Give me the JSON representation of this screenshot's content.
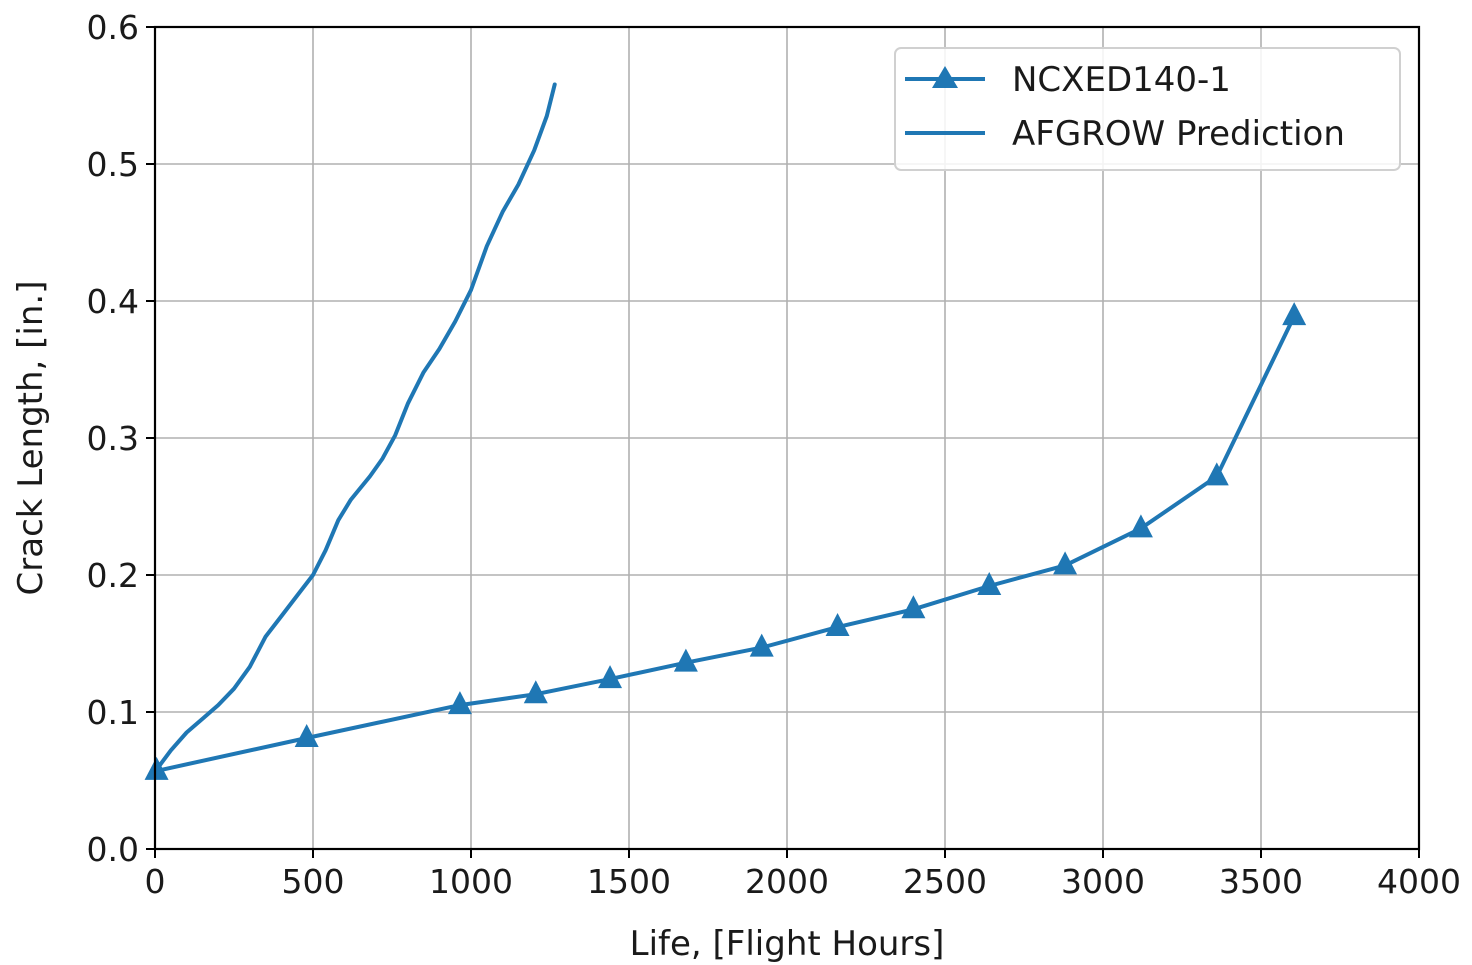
{
  "chart_data": {
    "type": "line",
    "xlabel": "Life, [Flight Hours]",
    "ylabel": "Crack Length, [in.]",
    "xlim": [
      0,
      4000
    ],
    "ylim": [
      0,
      0.6
    ],
    "x_ticks": [
      0,
      500,
      1000,
      1500,
      2000,
      2500,
      3000,
      3500,
      4000
    ],
    "y_ticks": [
      0.0,
      0.1,
      0.2,
      0.3,
      0.4,
      0.5,
      0.6
    ],
    "x_tick_labels": [
      "0",
      "500",
      "1000",
      "1500",
      "2000",
      "2500",
      "3000",
      "3500",
      "4000"
    ],
    "y_tick_labels": [
      "0.0",
      "0.1",
      "0.2",
      "0.3",
      "0.4",
      "0.5",
      "0.6"
    ],
    "grid": true,
    "legend_position": "top-right",
    "series": [
      {
        "name": "NCXED140-1",
        "color": "#1f77b4",
        "marker": "triangle",
        "x": [
          5,
          480,
          965,
          1205,
          1440,
          1680,
          1920,
          2160,
          2400,
          2640,
          2880,
          3120,
          3360,
          3605
        ],
        "y": [
          0.057,
          0.081,
          0.105,
          0.113,
          0.124,
          0.136,
          0.147,
          0.162,
          0.175,
          0.192,
          0.207,
          0.234,
          0.272,
          0.389
        ]
      },
      {
        "name": "AFGROW Prediction",
        "color": "#1f77b4",
        "marker": "none",
        "x": [
          5,
          50,
          100,
          150,
          200,
          250,
          300,
          350,
          400,
          450,
          500,
          540,
          580,
          620,
          680,
          720,
          760,
          800,
          850,
          900,
          950,
          1000,
          1050,
          1100,
          1150,
          1200,
          1240,
          1265
        ],
        "y": [
          0.058,
          0.072,
          0.085,
          0.095,
          0.105,
          0.117,
          0.133,
          0.155,
          0.17,
          0.185,
          0.2,
          0.218,
          0.24,
          0.255,
          0.272,
          0.285,
          0.302,
          0.325,
          0.348,
          0.365,
          0.385,
          0.408,
          0.44,
          0.465,
          0.485,
          0.51,
          0.535,
          0.558
        ]
      }
    ]
  }
}
